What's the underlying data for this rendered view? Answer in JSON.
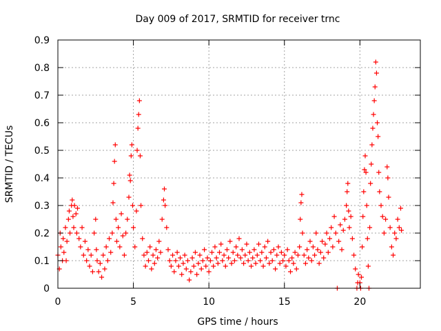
{
  "chart_data": {
    "type": "scatter",
    "title": "Day 009 of 2017, SRMTID for receiver trnc",
    "xlabel": "GPS time / hours",
    "ylabel": "SRMTID / TECUs",
    "xlim": [
      0,
      24
    ],
    "ylim": [
      0,
      0.9
    ],
    "x_ticks": [
      0,
      5,
      10,
      15,
      20
    ],
    "y_ticks": [
      0,
      0.1,
      0.2,
      0.3,
      0.4,
      0.5,
      0.6,
      0.7,
      0.8,
      0.9
    ],
    "x_tick_labels": [
      "0",
      "5",
      "10",
      "15",
      "20"
    ],
    "y_tick_labels": [
      "0",
      "0.1",
      "0.2",
      "0.3",
      "0.4",
      "0.5",
      "0.6",
      "0.7",
      "0.8",
      "0.9"
    ],
    "grid": true,
    "marker": "+",
    "color": "#ff0000",
    "series": [
      {
        "name": "SRMTID",
        "points": [
          [
            0.0,
            0.12
          ],
          [
            0.1,
            0.07
          ],
          [
            0.15,
            0.2
          ],
          [
            0.2,
            0.15
          ],
          [
            0.3,
            0.1
          ],
          [
            0.35,
            0.18
          ],
          [
            0.4,
            0.13
          ],
          [
            0.5,
            0.22
          ],
          [
            0.55,
            0.1
          ],
          [
            0.6,
            0.17
          ],
          [
            0.7,
            0.25
          ],
          [
            0.75,
            0.28
          ],
          [
            0.8,
            0.2
          ],
          [
            0.9,
            0.3
          ],
          [
            0.95,
            0.32
          ],
          [
            1.0,
            0.26
          ],
          [
            1.05,
            0.22
          ],
          [
            1.1,
            0.3
          ],
          [
            1.2,
            0.27
          ],
          [
            1.25,
            0.2
          ],
          [
            1.3,
            0.29
          ],
          [
            1.4,
            0.18
          ],
          [
            1.5,
            0.15
          ],
          [
            1.6,
            0.22
          ],
          [
            1.7,
            0.12
          ],
          [
            1.8,
            0.17
          ],
          [
            1.9,
            0.1
          ],
          [
            2.0,
            0.14
          ],
          [
            2.1,
            0.08
          ],
          [
            2.2,
            0.12
          ],
          [
            2.3,
            0.06
          ],
          [
            2.4,
            0.2
          ],
          [
            2.5,
            0.25
          ],
          [
            2.55,
            0.14
          ],
          [
            2.6,
            0.1
          ],
          [
            2.7,
            0.06
          ],
          [
            2.8,
            0.09
          ],
          [
            2.9,
            0.04
          ],
          [
            3.0,
            0.12
          ],
          [
            3.1,
            0.07
          ],
          [
            3.2,
            0.15
          ],
          [
            3.3,
            0.1
          ],
          [
            3.4,
            0.18
          ],
          [
            3.5,
            0.13
          ],
          [
            3.6,
            0.2
          ],
          [
            3.65,
            0.31
          ],
          [
            3.7,
            0.38
          ],
          [
            3.75,
            0.46
          ],
          [
            3.8,
            0.52
          ],
          [
            3.85,
            0.25
          ],
          [
            3.9,
            0.17
          ],
          [
            4.0,
            0.22
          ],
          [
            4.1,
            0.15
          ],
          [
            4.2,
            0.27
          ],
          [
            4.3,
            0.19
          ],
          [
            4.4,
            0.12
          ],
          [
            4.5,
            0.2
          ],
          [
            4.6,
            0.25
          ],
          [
            4.7,
            0.33
          ],
          [
            4.75,
            0.41
          ],
          [
            4.8,
            0.39
          ],
          [
            4.85,
            0.48
          ],
          [
            4.9,
            0.52
          ],
          [
            4.95,
            0.3
          ],
          [
            5.0,
            0.22
          ],
          [
            5.1,
            0.15
          ],
          [
            5.2,
            0.28
          ],
          [
            5.25,
            0.5
          ],
          [
            5.3,
            0.58
          ],
          [
            5.35,
            0.63
          ],
          [
            5.4,
            0.68
          ],
          [
            5.45,
            0.48
          ],
          [
            5.5,
            0.3
          ],
          [
            5.6,
            0.18
          ],
          [
            5.7,
            0.12
          ],
          [
            5.8,
            0.08
          ],
          [
            5.9,
            0.13
          ],
          [
            6.0,
            0.1
          ],
          [
            6.1,
            0.15
          ],
          [
            6.2,
            0.07
          ],
          [
            6.3,
            0.12
          ],
          [
            6.4,
            0.09
          ],
          [
            6.5,
            0.14
          ],
          [
            6.6,
            0.11
          ],
          [
            6.7,
            0.17
          ],
          [
            6.8,
            0.13
          ],
          [
            6.9,
            0.25
          ],
          [
            7.0,
            0.32
          ],
          [
            7.05,
            0.36
          ],
          [
            7.1,
            0.3
          ],
          [
            7.2,
            0.22
          ],
          [
            7.3,
            0.14
          ],
          [
            7.4,
            0.1
          ],
          [
            7.5,
            0.08
          ],
          [
            7.6,
            0.12
          ],
          [
            7.7,
            0.06
          ],
          [
            7.8,
            0.1
          ],
          [
            7.9,
            0.13
          ],
          [
            8.0,
            0.08
          ],
          [
            8.1,
            0.11
          ],
          [
            8.2,
            0.05
          ],
          [
            8.3,
            0.09
          ],
          [
            8.4,
            0.12
          ],
          [
            8.5,
            0.07
          ],
          [
            8.6,
            0.1
          ],
          [
            8.7,
            0.03
          ],
          [
            8.8,
            0.06
          ],
          [
            8.9,
            0.11
          ],
          [
            9.0,
            0.08
          ],
          [
            9.1,
            0.13
          ],
          [
            9.2,
            0.05
          ],
          [
            9.3,
            0.09
          ],
          [
            9.4,
            0.12
          ],
          [
            9.5,
            0.07
          ],
          [
            9.6,
            0.1
          ],
          [
            9.7,
            0.14
          ],
          [
            9.8,
            0.08
          ],
          [
            9.9,
            0.11
          ],
          [
            10.0,
            0.06
          ],
          [
            10.1,
            0.1
          ],
          [
            10.2,
            0.13
          ],
          [
            10.3,
            0.08
          ],
          [
            10.4,
            0.15
          ],
          [
            10.5,
            0.11
          ],
          [
            10.6,
            0.09
          ],
          [
            10.7,
            0.13
          ],
          [
            10.8,
            0.16
          ],
          [
            10.9,
            0.1
          ],
          [
            11.0,
            0.12
          ],
          [
            11.1,
            0.08
          ],
          [
            11.2,
            0.14
          ],
          [
            11.3,
            0.11
          ],
          [
            11.4,
            0.17
          ],
          [
            11.5,
            0.09
          ],
          [
            11.6,
            0.13
          ],
          [
            11.7,
            0.1
          ],
          [
            11.8,
            0.15
          ],
          [
            11.9,
            0.12
          ],
          [
            12.0,
            0.18
          ],
          [
            12.1,
            0.11
          ],
          [
            12.2,
            0.14
          ],
          [
            12.3,
            0.09
          ],
          [
            12.4,
            0.12
          ],
          [
            12.5,
            0.16
          ],
          [
            12.6,
            0.1
          ],
          [
            12.7,
            0.13
          ],
          [
            12.8,
            0.08
          ],
          [
            12.9,
            0.11
          ],
          [
            13.0,
            0.14
          ],
          [
            13.1,
            0.09
          ],
          [
            13.2,
            0.12
          ],
          [
            13.3,
            0.16
          ],
          [
            13.4,
            0.1
          ],
          [
            13.5,
            0.13
          ],
          [
            13.6,
            0.08
          ],
          [
            13.7,
            0.15
          ],
          [
            13.8,
            0.11
          ],
          [
            13.9,
            0.17
          ],
          [
            14.0,
            0.09
          ],
          [
            14.1,
            0.13
          ],
          [
            14.2,
            0.1
          ],
          [
            14.3,
            0.14
          ],
          [
            14.4,
            0.07
          ],
          [
            14.5,
            0.12
          ],
          [
            14.6,
            0.15
          ],
          [
            14.7,
            0.09
          ],
          [
            14.8,
            0.13
          ],
          [
            14.9,
            0.1
          ],
          [
            15.0,
            0.12
          ],
          [
            15.1,
            0.08
          ],
          [
            15.2,
            0.14
          ],
          [
            15.3,
            0.1
          ],
          [
            15.4,
            0.06
          ],
          [
            15.5,
            0.11
          ],
          [
            15.6,
            0.09
          ],
          [
            15.7,
            0.13
          ],
          [
            15.8,
            0.07
          ],
          [
            15.9,
            0.12
          ],
          [
            16.0,
            0.15
          ],
          [
            16.05,
            0.25
          ],
          [
            16.1,
            0.31
          ],
          [
            16.15,
            0.34
          ],
          [
            16.2,
            0.2
          ],
          [
            16.3,
            0.12
          ],
          [
            16.4,
            0.09
          ],
          [
            16.5,
            0.14
          ],
          [
            16.6,
            0.11
          ],
          [
            16.7,
            0.17
          ],
          [
            16.8,
            0.1
          ],
          [
            16.9,
            0.15
          ],
          [
            17.0,
            0.12
          ],
          [
            17.1,
            0.2
          ],
          [
            17.2,
            0.14
          ],
          [
            17.3,
            0.09
          ],
          [
            17.4,
            0.13
          ],
          [
            17.5,
            0.17
          ],
          [
            17.6,
            0.11
          ],
          [
            17.7,
            0.16
          ],
          [
            17.8,
            0.2
          ],
          [
            17.9,
            0.13
          ],
          [
            18.0,
            0.18
          ],
          [
            18.1,
            0.22
          ],
          [
            18.2,
            0.15
          ],
          [
            18.3,
            0.26
          ],
          [
            18.4,
            0.2
          ],
          [
            18.5,
            0.0
          ],
          [
            18.6,
            0.17
          ],
          [
            18.7,
            0.23
          ],
          [
            18.8,
            0.14
          ],
          [
            18.9,
            0.21
          ],
          [
            19.0,
            0.25
          ],
          [
            19.1,
            0.3
          ],
          [
            19.15,
            0.35
          ],
          [
            19.2,
            0.38
          ],
          [
            19.25,
            0.28
          ],
          [
            19.3,
            0.22
          ],
          [
            19.4,
            0.26
          ],
          [
            19.5,
            0.18
          ],
          [
            19.6,
            0.12
          ],
          [
            19.7,
            0.07
          ],
          [
            19.8,
            0.0
          ],
          [
            19.85,
            0.02
          ],
          [
            19.9,
            0.05
          ],
          [
            20.0,
            0.02
          ],
          [
            20.05,
            0.0
          ],
          [
            20.1,
            0.04
          ],
          [
            20.15,
            0.15
          ],
          [
            20.2,
            0.26
          ],
          [
            20.25,
            0.35
          ],
          [
            20.3,
            0.43
          ],
          [
            20.35,
            0.48
          ],
          [
            20.4,
            0.42
          ],
          [
            20.45,
            0.3
          ],
          [
            20.5,
            0.18
          ],
          [
            20.55,
            0.08
          ],
          [
            20.6,
            0.0
          ],
          [
            20.65,
            0.22
          ],
          [
            20.7,
            0.38
          ],
          [
            20.75,
            0.45
          ],
          [
            20.8,
            0.52
          ],
          [
            20.85,
            0.58
          ],
          [
            20.9,
            0.63
          ],
          [
            20.95,
            0.68
          ],
          [
            21.0,
            0.73
          ],
          [
            21.05,
            0.82
          ],
          [
            21.1,
            0.78
          ],
          [
            21.15,
            0.6
          ],
          [
            21.2,
            0.55
          ],
          [
            21.25,
            0.42
          ],
          [
            21.3,
            0.35
          ],
          [
            21.4,
            0.3
          ],
          [
            21.5,
            0.26
          ],
          [
            21.6,
            0.2
          ],
          [
            21.7,
            0.25
          ],
          [
            21.8,
            0.44
          ],
          [
            21.85,
            0.4
          ],
          [
            21.9,
            0.33
          ],
          [
            22.0,
            0.22
          ],
          [
            22.1,
            0.15
          ],
          [
            22.2,
            0.12
          ],
          [
            22.3,
            0.2
          ],
          [
            22.4,
            0.18
          ],
          [
            22.5,
            0.25
          ],
          [
            22.6,
            0.22
          ],
          [
            22.7,
            0.29
          ],
          [
            22.75,
            0.21
          ]
        ]
      }
    ]
  }
}
